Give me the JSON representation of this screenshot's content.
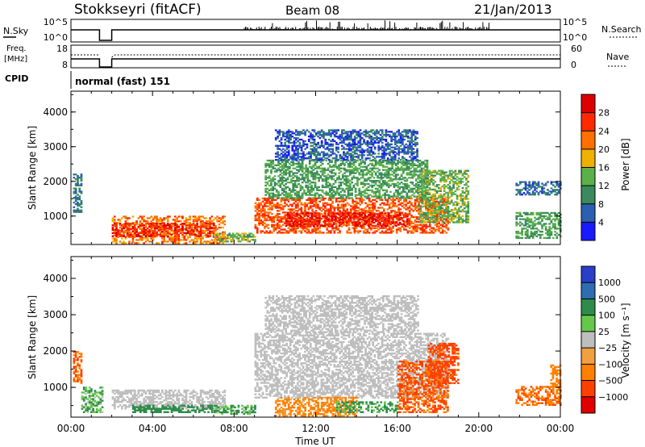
{
  "header": {
    "station": "Stokkseyri (fitACF)",
    "beam": "Beam 08",
    "date": "21/Jan/2013"
  },
  "status_panel": {
    "nsky_label": "N.Sky",
    "nsky_ticks": [
      "10^5",
      "10^0"
    ],
    "nsearch_label": "N.Search",
    "nsearch_ticks": [
      "10^5",
      "10^0"
    ],
    "freq_label_line1": "Freq.",
    "freq_label_line2": "[MHz]",
    "freq_ticks": [
      "18",
      "8"
    ],
    "nave_label": "Nave",
    "nave_ticks": [
      "60",
      "0"
    ],
    "cpid_label": "CPID",
    "cpid_value": "normal (fast) 151"
  },
  "colors": {
    "power": [
      "#1a1aff",
      "#2b5fb0",
      "#3a8a5e",
      "#5bb04a",
      "#f0b000",
      "#ff7000",
      "#ff2a00",
      "#dd0000"
    ],
    "velocity": [
      "#2a3ec8",
      "#2e6db0",
      "#2e8c4a",
      "#66c84a",
      "#bebebe",
      "#f0a040",
      "#ff8000",
      "#ff4000",
      "#e00000"
    ],
    "velocity_ground": "#bebebe"
  },
  "chart_data": [
    {
      "type": "heatmap",
      "name": "power",
      "title": "",
      "xlabel": "Time UT",
      "ylabel": "Slant Range [km]",
      "xlim": [
        0,
        24
      ],
      "ylim": [
        180,
        4600
      ],
      "x_ticks": [
        "00:00",
        "04:00",
        "08:00",
        "12:00",
        "16:00",
        "20:00",
        "00:00"
      ],
      "y_ticks": [
        "1000",
        "2000",
        "3000",
        "4000"
      ],
      "y_tick_values": [
        1000,
        2000,
        3000,
        4000
      ],
      "colorbar_label": "Power [dB]",
      "colorbar_ticks": [
        "4",
        "8",
        "12",
        "16",
        "20",
        "24",
        "28"
      ],
      "colorbar_range": [
        0,
        30
      ],
      "regions": [
        {
          "t0": 0.1,
          "t1": 0.5,
          "r0": 1100,
          "r1": 2200,
          "level": 8
        },
        {
          "t0": 2.0,
          "t1": 7.5,
          "r0": 200,
          "r1": 1000,
          "level": 22
        },
        {
          "t0": 2.0,
          "t1": 7.0,
          "r0": 400,
          "r1": 800,
          "level": 27
        },
        {
          "t0": 7.0,
          "t1": 9.0,
          "r0": 250,
          "r1": 500,
          "level": 14
        },
        {
          "t0": 9.0,
          "t1": 18.5,
          "r0": 500,
          "r1": 1500,
          "level": 24
        },
        {
          "t0": 10.5,
          "t1": 16.5,
          "r0": 700,
          "r1": 1100,
          "level": 28
        },
        {
          "t0": 9.5,
          "t1": 17.5,
          "r0": 1500,
          "r1": 2600,
          "level": 12
        },
        {
          "t0": 10.0,
          "t1": 17.0,
          "r0": 2600,
          "r1": 3500,
          "level": 6
        },
        {
          "t0": 17.0,
          "t1": 19.5,
          "r0": 800,
          "r1": 2300,
          "level": 14
        },
        {
          "t0": 21.8,
          "t1": 24.0,
          "r0": 350,
          "r1": 1100,
          "level": 12
        },
        {
          "t0": 21.8,
          "t1": 24.0,
          "r0": 1600,
          "r1": 2000,
          "level": 7
        }
      ]
    },
    {
      "type": "heatmap",
      "name": "velocity",
      "title": "",
      "xlabel": "Time UT",
      "ylabel": "Slant Range [km]",
      "xlim": [
        0,
        24
      ],
      "ylim": [
        180,
        4600
      ],
      "x_ticks": [
        "00:00",
        "04:00",
        "08:00",
        "12:00",
        "16:00",
        "20:00",
        "00:00"
      ],
      "y_ticks": [
        "1000",
        "2000",
        "3000",
        "4000"
      ],
      "y_tick_values": [
        1000,
        2000,
        3000,
        4000
      ],
      "colorbar_label": "Velocity [m s⁻¹]",
      "colorbar_ticks": [
        "1000",
        "500",
        "100",
        "25",
        "−25",
        "−100",
        "−500",
        "−1000"
      ],
      "regions": [
        {
          "t0": 0.1,
          "t1": 0.5,
          "r0": 1100,
          "r1": 2000,
          "v": -300
        },
        {
          "t0": 0.5,
          "t1": 1.5,
          "r0": 300,
          "r1": 1000,
          "v": 50
        },
        {
          "t0": 2.0,
          "t1": 7.5,
          "r0": 400,
          "r1": 900,
          "v": 0
        },
        {
          "t0": 3.0,
          "t1": 7.0,
          "r0": 300,
          "r1": 500,
          "v": 200
        },
        {
          "t0": 7.0,
          "t1": 9.0,
          "r0": 250,
          "r1": 500,
          "v": 60
        },
        {
          "t0": 9.0,
          "t1": 18.5,
          "r0": 700,
          "r1": 2500,
          "v": 0
        },
        {
          "t0": 9.5,
          "t1": 17.0,
          "r0": 2500,
          "r1": 3500,
          "v": 0
        },
        {
          "t0": 10.0,
          "t1": 14.0,
          "r0": 200,
          "r1": 700,
          "v": -80
        },
        {
          "t0": 13.0,
          "t1": 16.0,
          "r0": 300,
          "r1": 600,
          "v": 80
        },
        {
          "t0": 16.0,
          "t1": 18.5,
          "r0": 300,
          "r1": 1700,
          "v": -350
        },
        {
          "t0": 17.5,
          "t1": 19.0,
          "r0": 1100,
          "r1": 2200,
          "v": -450
        },
        {
          "t0": 21.8,
          "t1": 24.0,
          "r0": 500,
          "r1": 1000,
          "v": -250
        },
        {
          "t0": 23.5,
          "t1": 24.0,
          "r0": 1000,
          "r1": 1600,
          "v": -150
        }
      ]
    }
  ],
  "status_series": {
    "nsky_gap": [
      1.4,
      2.0
    ],
    "freq_gap": [
      1.4,
      2.0
    ]
  }
}
